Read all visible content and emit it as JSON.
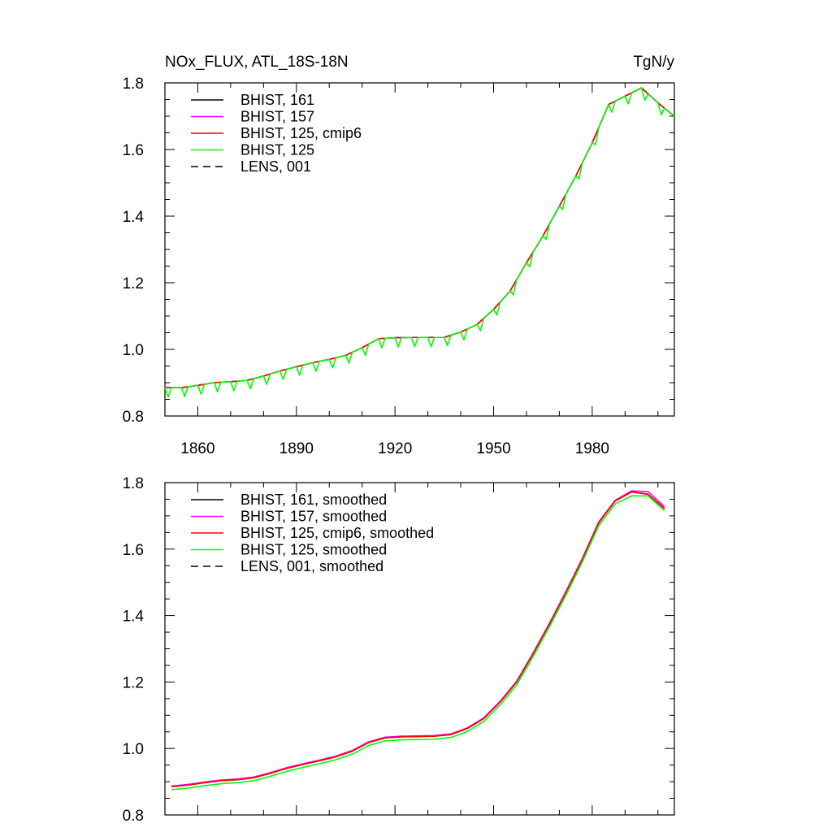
{
  "chart_data": [
    {
      "type": "line",
      "title": "NOx_FLUX, ATL_18S-18N",
      "units": "TgN/y",
      "xlim": [
        1850,
        2005
      ],
      "ylim": [
        0.8,
        1.8
      ],
      "xticks": [
        "1860",
        "1890",
        "1920",
        "1950",
        "1980"
      ],
      "yticks": [
        "0.8",
        "1.0",
        "1.2",
        "1.4",
        "1.6",
        "1.8"
      ],
      "legend_position": "top-left",
      "series": [
        {
          "name": "BHIST, 161",
          "color": "#000000",
          "dash": "solid",
          "noise": 0,
          "x": [
            1850,
            1855,
            1860,
            1865,
            1870,
            1875,
            1880,
            1885,
            1890,
            1895,
            1900,
            1905,
            1910,
            1915,
            1920,
            1925,
            1930,
            1935,
            1940,
            1945,
            1950,
            1955,
            1960,
            1965,
            1970,
            1975,
            1980,
            1985,
            1990,
            1995,
            2000,
            2005
          ],
          "y": [
            0.885,
            0.885,
            0.892,
            0.9,
            0.903,
            0.907,
            0.92,
            0.935,
            0.948,
            0.96,
            0.97,
            0.982,
            1.005,
            1.032,
            1.035,
            1.036,
            1.036,
            1.036,
            1.052,
            1.075,
            1.12,
            1.175,
            1.26,
            1.34,
            1.43,
            1.52,
            1.62,
            1.735,
            1.76,
            1.785,
            1.74,
            1.7
          ]
        },
        {
          "name": "BHIST, 157",
          "color": "#ff00ff",
          "dash": "solid",
          "noise": 0,
          "x": [
            1850,
            1855,
            1860,
            1865,
            1870,
            1875,
            1880,
            1885,
            1890,
            1895,
            1900,
            1905,
            1910,
            1915,
            1920,
            1925,
            1930,
            1935,
            1940,
            1945,
            1950,
            1955,
            1960,
            1965,
            1970,
            1975,
            1980,
            1985,
            1990,
            1995,
            2000,
            2005
          ],
          "y": [
            0.885,
            0.885,
            0.892,
            0.9,
            0.903,
            0.907,
            0.92,
            0.935,
            0.948,
            0.96,
            0.97,
            0.982,
            1.005,
            1.032,
            1.035,
            1.036,
            1.036,
            1.036,
            1.052,
            1.075,
            1.12,
            1.175,
            1.26,
            1.34,
            1.43,
            1.52,
            1.62,
            1.735,
            1.76,
            1.785,
            1.74,
            1.7
          ]
        },
        {
          "name": "BHIST, 125, cmip6",
          "color": "#ff0000",
          "dash": "solid",
          "noise": 0,
          "x": [
            1850,
            1855,
            1860,
            1865,
            1870,
            1875,
            1880,
            1885,
            1890,
            1895,
            1900,
            1905,
            1910,
            1915,
            1920,
            1925,
            1930,
            1935,
            1940,
            1945,
            1950,
            1955,
            1960,
            1965,
            1970,
            1975,
            1980,
            1985,
            1990,
            1995,
            2000,
            2005
          ],
          "y": [
            0.885,
            0.885,
            0.892,
            0.9,
            0.903,
            0.907,
            0.92,
            0.935,
            0.948,
            0.96,
            0.97,
            0.982,
            1.005,
            1.032,
            1.035,
            1.036,
            1.036,
            1.036,
            1.052,
            1.075,
            1.12,
            1.175,
            1.26,
            1.34,
            1.43,
            1.52,
            1.62,
            1.735,
            1.76,
            1.785,
            1.74,
            1.7
          ]
        },
        {
          "name": "BHIST, 125",
          "color": "#00ff00",
          "dash": "solid",
          "noise": 0.028,
          "x": [
            1850,
            1855,
            1860,
            1865,
            1870,
            1875,
            1880,
            1885,
            1890,
            1895,
            1900,
            1905,
            1910,
            1915,
            1920,
            1925,
            1930,
            1935,
            1940,
            1945,
            1950,
            1955,
            1960,
            1965,
            1970,
            1975,
            1980,
            1985,
            1990,
            1995,
            2000,
            2005
          ],
          "y": [
            0.885,
            0.885,
            0.892,
            0.9,
            0.903,
            0.907,
            0.92,
            0.935,
            0.948,
            0.96,
            0.97,
            0.982,
            1.005,
            1.032,
            1.035,
            1.036,
            1.036,
            1.036,
            1.052,
            1.075,
            1.12,
            1.175,
            1.26,
            1.34,
            1.43,
            1.52,
            1.62,
            1.735,
            1.76,
            1.785,
            1.74,
            1.7
          ]
        },
        {
          "name": "LENS, 001",
          "color": "#000000",
          "dash": "dashed",
          "noise": 0,
          "x": [],
          "y": []
        }
      ]
    },
    {
      "type": "line",
      "xlim": [
        1850,
        2005
      ],
      "ylim": [
        0.8,
        1.8
      ],
      "yticks": [
        "0.8",
        "1.0",
        "1.2",
        "1.4",
        "1.6",
        "1.8"
      ],
      "legend_position": "top-left",
      "series": [
        {
          "name": "BHIST, 161, smoothed",
          "color": "#000000",
          "dash": "solid",
          "x": [
            1852,
            1857,
            1862,
            1867,
            1872,
            1877,
            1882,
            1887,
            1892,
            1897,
            1902,
            1907,
            1912,
            1917,
            1922,
            1927,
            1932,
            1937,
            1942,
            1947,
            1952,
            1957,
            1962,
            1967,
            1972,
            1977,
            1982,
            1987,
            1992,
            1997,
            2002
          ],
          "y": [
            0.885,
            0.89,
            0.897,
            0.903,
            0.906,
            0.912,
            0.925,
            0.94,
            0.952,
            0.963,
            0.975,
            0.992,
            1.018,
            1.032,
            1.035,
            1.036,
            1.037,
            1.042,
            1.06,
            1.09,
            1.14,
            1.2,
            1.285,
            1.375,
            1.47,
            1.57,
            1.68,
            1.745,
            1.772,
            1.765,
            1.722
          ]
        },
        {
          "name": "BHIST, 157, smoothed",
          "color": "#ff00ff",
          "dash": "solid",
          "x": [
            1852,
            1857,
            1862,
            1867,
            1872,
            1877,
            1882,
            1887,
            1892,
            1897,
            1902,
            1907,
            1912,
            1917,
            1922,
            1927,
            1932,
            1937,
            1942,
            1947,
            1952,
            1957,
            1962,
            1967,
            1972,
            1977,
            1982,
            1987,
            1992,
            1997,
            2002
          ],
          "y": [
            0.887,
            0.892,
            0.899,
            0.905,
            0.908,
            0.914,
            0.927,
            0.942,
            0.954,
            0.965,
            0.977,
            0.994,
            1.02,
            1.034,
            1.037,
            1.038,
            1.039,
            1.044,
            1.062,
            1.092,
            1.142,
            1.202,
            1.287,
            1.377,
            1.472,
            1.572,
            1.682,
            1.747,
            1.775,
            1.773,
            1.728
          ]
        },
        {
          "name": "BHIST, 125, cmip6, smoothed",
          "color": "#ff0000",
          "dash": "solid",
          "x": [
            1852,
            1857,
            1862,
            1867,
            1872,
            1877,
            1882,
            1887,
            1892,
            1897,
            1902,
            1907,
            1912,
            1917,
            1922,
            1927,
            1932,
            1937,
            1942,
            1947,
            1952,
            1957,
            1962,
            1967,
            1972,
            1977,
            1982,
            1987,
            1992,
            1997,
            2002
          ],
          "y": [
            0.885,
            0.89,
            0.897,
            0.903,
            0.906,
            0.912,
            0.925,
            0.94,
            0.952,
            0.963,
            0.975,
            0.992,
            1.018,
            1.032,
            1.035,
            1.036,
            1.037,
            1.042,
            1.06,
            1.09,
            1.14,
            1.2,
            1.285,
            1.375,
            1.47,
            1.57,
            1.68,
            1.745,
            1.772,
            1.765,
            1.722
          ]
        },
        {
          "name": "BHIST, 125, smoothed",
          "color": "#00ff00",
          "dash": "solid",
          "x": [
            1852,
            1857,
            1862,
            1867,
            1872,
            1877,
            1882,
            1887,
            1892,
            1897,
            1902,
            1907,
            1912,
            1917,
            1922,
            1927,
            1932,
            1937,
            1942,
            1947,
            1952,
            1957,
            1962,
            1967,
            1972,
            1977,
            1982,
            1987,
            1992,
            1997,
            2002
          ],
          "y": [
            0.876,
            0.881,
            0.888,
            0.894,
            0.897,
            0.903,
            0.916,
            0.931,
            0.943,
            0.954,
            0.966,
            0.983,
            1.009,
            1.023,
            1.026,
            1.027,
            1.028,
            1.033,
            1.051,
            1.081,
            1.131,
            1.191,
            1.276,
            1.366,
            1.461,
            1.561,
            1.671,
            1.736,
            1.76,
            1.76,
            1.716
          ]
        },
        {
          "name": "LENS, 001, smoothed",
          "color": "#000000",
          "dash": "dashed",
          "x": [],
          "y": []
        }
      ]
    }
  ]
}
